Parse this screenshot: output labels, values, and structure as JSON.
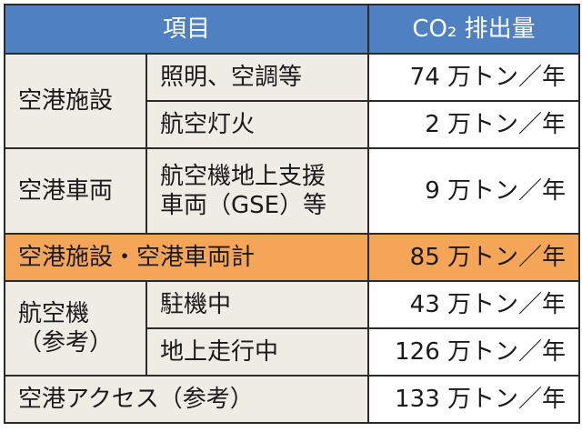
{
  "header": {
    "item": "項目",
    "co2": "CO₂ 排出量"
  },
  "rows": {
    "airport_facilities": {
      "label": "空港施設",
      "sub1": "照明、空調等",
      "val1": "74 万トン／年",
      "sub2": "航空灯火",
      "val2": "2 万トン／年"
    },
    "airport_vehicles": {
      "label": "空港車両",
      "sub_line1": "航空機地上支援",
      "sub_line2": "車両（GSE）等",
      "val": "9 万トン／年"
    },
    "subtotal": {
      "label": "空港施設・空港車両計",
      "val": "85 万トン／年"
    },
    "aircraft": {
      "label_line1": "航空機",
      "label_line2": "（参考）",
      "sub1": "駐機中",
      "val1": "43 万トン／年",
      "sub2": "地上走行中",
      "val2": "126 万トン／年"
    },
    "access": {
      "label": "空港アクセス（参考）",
      "val": "133 万トン／年"
    }
  },
  "colors": {
    "header_bg": "#4f80c2",
    "category_bg": "#eeece5",
    "highlight_bg": "#f5a558"
  }
}
